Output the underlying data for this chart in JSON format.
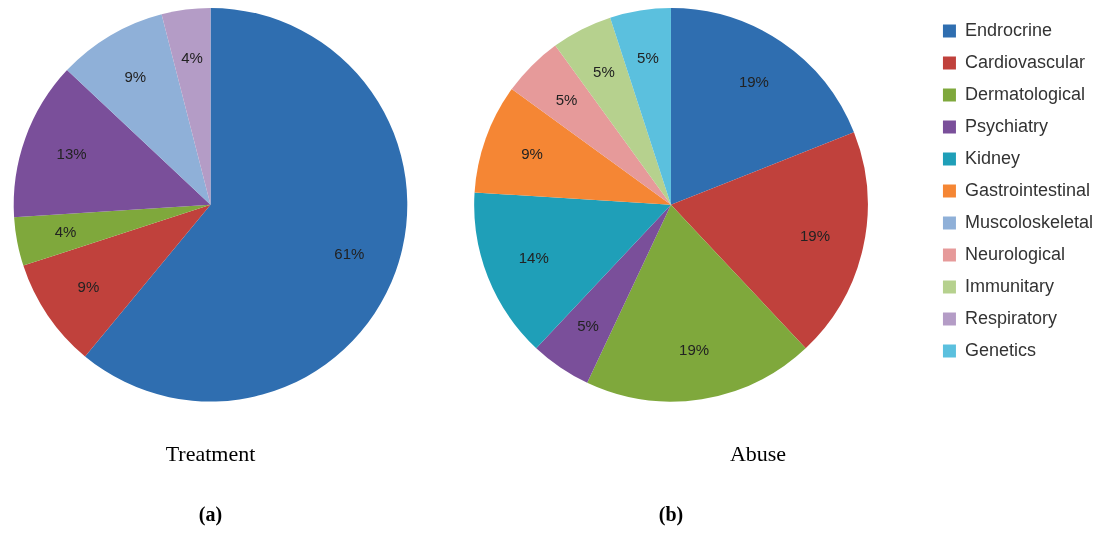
{
  "chart_data": [
    {
      "type": "pie",
      "title": "Treatment",
      "annotations": [
        "(a)"
      ],
      "categories": [
        null,
        null,
        null,
        null,
        null,
        null
      ],
      "values": [
        61,
        9,
        4,
        13,
        9,
        4
      ],
      "colors": [
        "#2f6eb0",
        "#c0413c",
        "#7fa83c",
        "#7a4f9a",
        "#8fb0d8",
        "#b49cc6"
      ],
      "value_labels": [
        "61%",
        "9%",
        "4%",
        "13%",
        "9%",
        "4%"
      ],
      "legend": false
    },
    {
      "type": "pie",
      "title": "Abuse",
      "annotations": [
        "(b)"
      ],
      "categories": [
        "Endrocrine",
        "Cardiovascular",
        "Dermatological",
        "Psychiatry",
        "Kidney",
        "Gastrointestinal",
        "Muscoloskeletal",
        "Neurological",
        "Immunitary",
        "Respiratory",
        "Genetics"
      ],
      "values": [
        19,
        19,
        19,
        5,
        14,
        9,
        0,
        5,
        5,
        0,
        5
      ],
      "colors": [
        "#2f6eb0",
        "#c0413c",
        "#7fa83c",
        "#7a4f9a",
        "#1f9fb8",
        "#f58634",
        "#8fb0d8",
        "#e69a9a",
        "#b6d18e",
        "#b49cc6",
        "#5bc0de"
      ],
      "value_labels": [
        "19%",
        "19%",
        "19%",
        "5%",
        "14%",
        "9%",
        null,
        "5%",
        "5%",
        null,
        "5%"
      ],
      "legend": "right"
    }
  ]
}
